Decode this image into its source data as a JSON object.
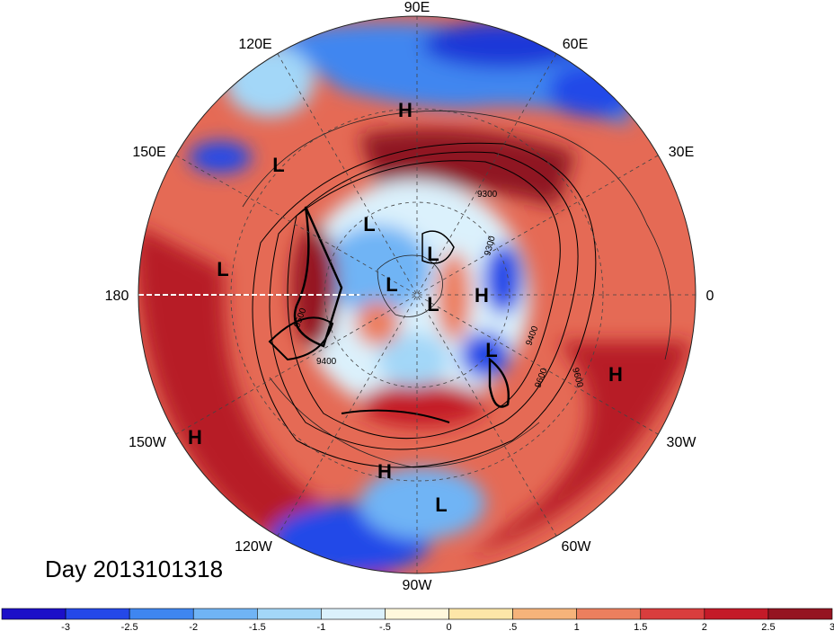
{
  "colors": {
    "scale": [
      "#1c10c8",
      "#2448e8",
      "#3f86f0",
      "#70b4f5",
      "#a3d7f8",
      "#dbf1fc",
      "#fff8dc",
      "#fde6a8",
      "#f6b37a",
      "#ec7f5e",
      "#d93d3d",
      "#c41a28",
      "#951421"
    ],
    "coast": "#222222",
    "contour": "#000000"
  },
  "lon_labels": [
    {
      "text": "90E"
    },
    {
      "text": "60E"
    },
    {
      "text": "30E"
    },
    {
      "text": "0"
    },
    {
      "text": "30W"
    },
    {
      "text": "60W"
    },
    {
      "text": "90W"
    },
    {
      "text": "120W"
    },
    {
      "text": "150W"
    },
    {
      "text": "180"
    },
    {
      "text": "150E"
    },
    {
      "text": "120E"
    }
  ],
  "pressure_centers": [
    "H",
    "L",
    "L",
    "L",
    "L",
    "L",
    "L",
    "H",
    "L",
    "H",
    "H",
    "H",
    "L"
  ],
  "contour_labels": [
    "9300",
    "9300",
    "9400",
    "9500",
    "9400",
    "9600",
    "9600"
  ],
  "day_label": "Day 2013101318",
  "colorbar": {
    "ticks": [
      "-3",
      "-2.5",
      "-2",
      "-1.5",
      "-1",
      "-.5",
      "0",
      ".5",
      "1",
      "1.5",
      "2",
      "2.5",
      "3"
    ]
  }
}
